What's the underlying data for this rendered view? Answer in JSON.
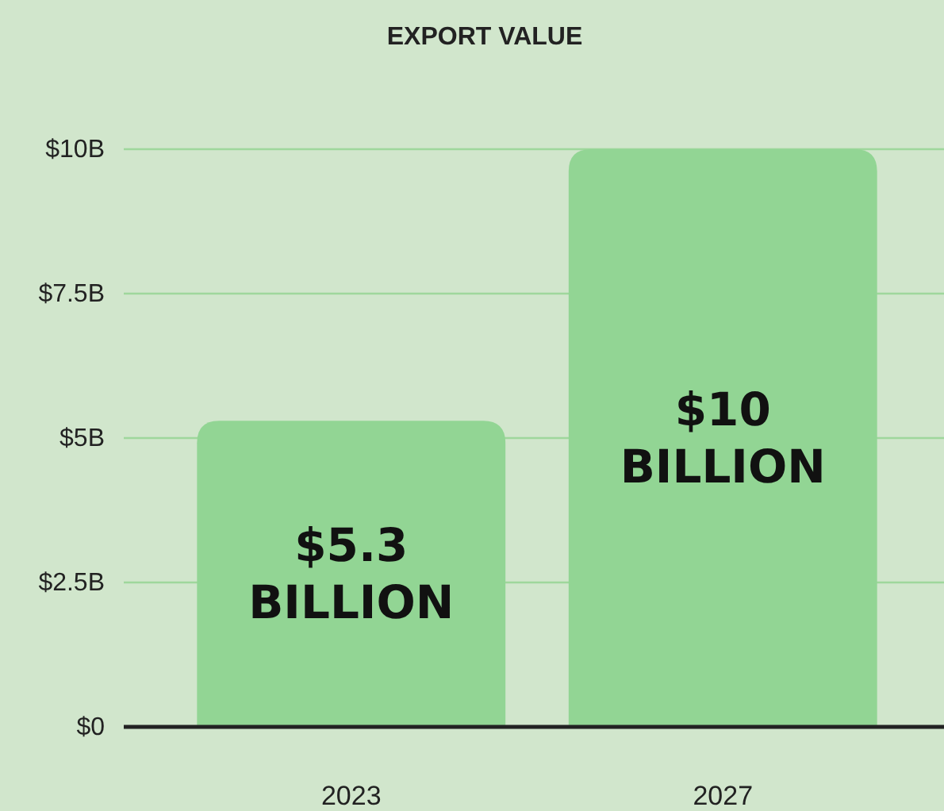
{
  "chart_data": {
    "type": "bar",
    "title": "EXPORT VALUE",
    "categories": [
      "2023",
      "2027"
    ],
    "values": [
      5.3,
      10
    ],
    "color": "#92d594",
    "value_labels": [
      "$5.3 BILLION",
      "$10 BILLION"
    ],
    "ylim": [
      0,
      10
    ],
    "yticks": [
      {
        "value": 0,
        "label": "$0"
      },
      {
        "value": 2.5,
        "label": "$2.5B"
      },
      {
        "value": 5,
        "label": "$5B"
      },
      {
        "value": 7.5,
        "label": "$7.5B"
      },
      {
        "value": 10,
        "label": "$10B"
      }
    ],
    "grid": "y"
  }
}
